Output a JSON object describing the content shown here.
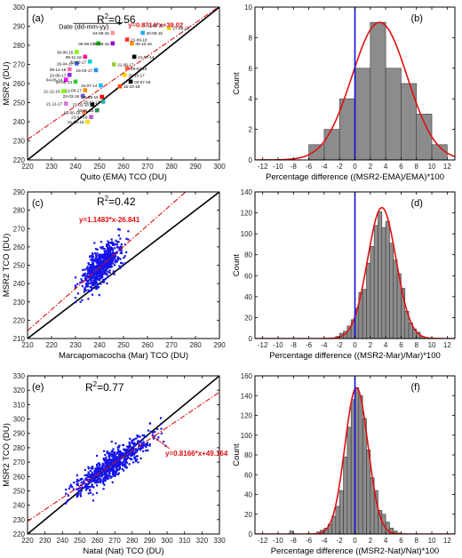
{
  "chart_data": [
    {
      "panel_label": "(a)",
      "type": "scatter",
      "xlabel": "Quito (EMA) TCO (DU)",
      "ylabel": "MSR2 (DU)",
      "xlim": [
        220,
        300
      ],
      "ylim": [
        220,
        300
      ],
      "xticks": [
        220,
        230,
        240,
        250,
        260,
        270,
        280,
        290,
        300
      ],
      "yticks": [
        220,
        230,
        240,
        250,
        260,
        270,
        280,
        290,
        300
      ],
      "r2_prefix": "R",
      "r2_sup": "2",
      "r2_value": "=0.56",
      "fit_equation": "y=0.8714*x+39.02",
      "fit": {
        "slope": 0.8714,
        "intercept": 39.02
      },
      "legend_title": "Date (dd-mm-yy)",
      "points": [
        {
          "date": "11-09-15",
          "x": 268.5,
          "y": 290.5,
          "color": "#d9d9d9"
        },
        {
          "date": "27-09-15",
          "x": 279.0,
          "y": 289.0,
          "color": "#e6d200"
        },
        {
          "date": "04-09-15",
          "x": 255.5,
          "y": 286.5,
          "color": "#ff9999"
        },
        {
          "date": "20-09-15",
          "x": 268.0,
          "y": 286.5,
          "color": "#22aaff"
        },
        {
          "date": "21-09-18",
          "x": 261.5,
          "y": 283.0,
          "color": "#ff3030"
        },
        {
          "date": "06-09-17",
          "x": 249.5,
          "y": 281.0,
          "color": "#00c000"
        },
        {
          "date": "08-09-16",
          "x": 255.5,
          "y": 281.0,
          "color": "#9400d3"
        },
        {
          "date": "06-10-16",
          "x": 263.5,
          "y": 281.0,
          "color": "#ff8c00"
        },
        {
          "date": "30-06-15",
          "x": 240.5,
          "y": 276.5,
          "color": "#7fff00"
        },
        {
          "date": "09-11-16",
          "x": 244.0,
          "y": 274.0,
          "color": "#ff1493"
        },
        {
          "date": "21-07-14",
          "x": 264.5,
          "y": 274.0,
          "color": "#000000"
        },
        {
          "date": "22-02-17",
          "x": 246.0,
          "y": 271.5,
          "color": "#00ced1"
        },
        {
          "date": "26-04-17",
          "x": 240.5,
          "y": 270.5,
          "color": "#4169e1"
        },
        {
          "date": "21-06-17",
          "x": 256.0,
          "y": 270.0,
          "color": "#9acd32"
        },
        {
          "date": "29-03-18",
          "x": 261.5,
          "y": 268.0,
          "color": "#ff6347"
        },
        {
          "date": "08-12-16",
          "x": 237.5,
          "y": 267.5,
          "color": "#ff69b4"
        },
        {
          "date": "15-03-17",
          "x": 248.5,
          "y": 267.0,
          "color": "#1e90ff"
        },
        {
          "date": "23-06-17",
          "x": 237.5,
          "y": 264.5,
          "color": "#8a2be2"
        },
        {
          "date": "20-10-17",
          "x": 260.5,
          "y": 264.5,
          "color": "#ffd700"
        },
        {
          "date": "04-06-14",
          "x": 236.0,
          "y": 262.0,
          "color": "#ff00ff"
        },
        {
          "date": "03-07-18",
          "x": 263.0,
          "y": 261.0,
          "color": "#000000"
        },
        {
          "date": "20-08-14",
          "x": 240.0,
          "y": 261.0,
          "color": "#32cd32"
        },
        {
          "date": "15-07-14",
          "x": 250.5,
          "y": 259.0,
          "color": "#00bfff"
        },
        {
          "date": "15-10-18",
          "x": 258.5,
          "y": 258.5,
          "color": "#ff4500"
        },
        {
          "date": "21-12-16",
          "x": 235.0,
          "y": 256.0,
          "color": "#7cfc00"
        },
        {
          "date": "12-06-17",
          "x": 244.0,
          "y": 256.5,
          "color": "#ff8c00"
        },
        {
          "date": "22-03-18",
          "x": 243.0,
          "y": 253.5,
          "color": "#6a5acd"
        },
        {
          "date": "26-05-15",
          "x": 251.0,
          "y": 253.0,
          "color": "#ff0000"
        },
        {
          "date": "18-12-17",
          "x": 251.5,
          "y": 250.5,
          "color": "#20b2aa"
        },
        {
          "date": "21-11-17",
          "x": 236.0,
          "y": 249.5,
          "color": "#da70d6"
        },
        {
          "date": "27-02-18",
          "x": 247.0,
          "y": 249.0,
          "color": "#000000"
        },
        {
          "date": "20-01-18",
          "x": 249.0,
          "y": 246.0,
          "color": "#2e8b57"
        },
        {
          "date": "02-06-18",
          "x": 243.5,
          "y": 245.0,
          "color": "#ff7f50"
        },
        {
          "date": "23-04-18",
          "x": 246.5,
          "y": 242.5,
          "color": "#ba55d3"
        },
        {
          "date": "21-05-18",
          "x": 245.0,
          "y": 240.0,
          "color": "#ffd700"
        }
      ]
    },
    {
      "panel_label": "(b)",
      "type": "bar",
      "xlabel": "Percentage difference ((MSR2-EMA)/EMA)*100",
      "ylabel": "Count",
      "xlim": [
        -13,
        13
      ],
      "ylim": [
        0,
        10
      ],
      "xticks": [
        -12,
        -10,
        -8,
        -6,
        -4,
        -2,
        0,
        2,
        4,
        6,
        8,
        10,
        12
      ],
      "yticks": [
        0,
        2,
        4,
        6,
        8,
        10
      ],
      "bin_width": 2,
      "bin_starts": [
        -6,
        -4,
        -2,
        0,
        2,
        4,
        6,
        8,
        10
      ],
      "counts": [
        1,
        2,
        4,
        6,
        9,
        6,
        5,
        3,
        1
      ],
      "normal_fit": {
        "mean": 3.2,
        "sd": 3.6,
        "peak": 9.0
      },
      "zero_line": 0
    },
    {
      "panel_label": "(c)",
      "type": "scatter",
      "xlabel": "Marcapomacocha (Mar) TCO (DU)",
      "ylabel": "MSR2 TCO (DU)",
      "xlim": [
        210,
        290
      ],
      "ylim": [
        210,
        290
      ],
      "xticks": [
        210,
        220,
        230,
        240,
        250,
        260,
        270,
        280,
        290
      ],
      "yticks": [
        210,
        220,
        230,
        240,
        250,
        260,
        270,
        280,
        290
      ],
      "r2_prefix": "R",
      "r2_sup": "2",
      "r2_value": "=0.42",
      "fit_equation": "y=1.1483*x-26.841",
      "fit": {
        "slope": 1.1483,
        "intercept": -26.841
      },
      "cloud": {
        "x_center": 241,
        "x_sd": 4.2,
        "x_range": [
          230,
          252
        ],
        "slope": 1.1483,
        "intercept": -26.841,
        "resid_sd": 4.8,
        "n": 650
      }
    },
    {
      "panel_label": "(d)",
      "type": "bar",
      "xlabel": "Percentage difference ((MSR2-Mar)/Mar)*100",
      "ylabel": "Count",
      "xlim": [
        -13,
        13
      ],
      "ylim": [
        0,
        140
      ],
      "xticks": [
        -12,
        -10,
        -8,
        -6,
        -4,
        -2,
        0,
        2,
        4,
        6,
        8,
        10,
        12
      ],
      "yticks": [
        0,
        20,
        40,
        60,
        80,
        100,
        120,
        140
      ],
      "bin_width": 0.5,
      "bin_starts": [
        -2.5,
        -2.0,
        -1.5,
        -1.0,
        -0.5,
        0.0,
        0.5,
        1.0,
        1.5,
        2.0,
        2.5,
        3.0,
        3.5,
        4.0,
        4.5,
        5.0,
        5.5,
        6.0,
        6.5,
        7.0,
        7.5,
        8.0,
        8.5,
        9.0
      ],
      "counts": [
        2,
        5,
        7,
        12,
        18,
        29,
        44,
        47,
        72,
        88,
        108,
        121,
        106,
        112,
        91,
        75,
        62,
        48,
        26,
        15,
        9,
        6,
        2,
        1
      ],
      "normal_fit": {
        "mean": 3.5,
        "sd": 1.85,
        "peak": 125
      },
      "zero_line": 0
    },
    {
      "panel_label": "(e)",
      "type": "scatter",
      "xlabel": "Natal (Nat) TCO (DU)",
      "ylabel": "MSR2 TCO (DU)",
      "xlim": [
        220,
        330
      ],
      "ylim": [
        220,
        330
      ],
      "xticks": [
        220,
        230,
        240,
        250,
        260,
        270,
        280,
        290,
        300,
        310,
        320,
        330
      ],
      "yticks": [
        220,
        230,
        240,
        250,
        260,
        270,
        280,
        290,
        300,
        310,
        320,
        330
      ],
      "r2_prefix": "R",
      "r2_sup": "2",
      "r2_value": "=0.77",
      "fit_equation": "y=0.8166*x+49.164",
      "fit": {
        "slope": 0.8166,
        "intercept": 49.164
      },
      "cloud": {
        "x_center": 268,
        "x_sd": 10.5,
        "x_range": [
          242,
          300
        ],
        "slope": 0.8166,
        "intercept": 49.164,
        "resid_sd": 4.5,
        "n": 700
      }
    },
    {
      "panel_label": "(f)",
      "type": "bar",
      "xlabel": "Percentage difference ((MSR2-Nat)/Nat)*100",
      "ylabel": "Count",
      "xlim": [
        -13,
        13
      ],
      "ylim": [
        0,
        160
      ],
      "xticks": [
        -12,
        -10,
        -8,
        -6,
        -4,
        -2,
        0,
        2,
        4,
        6,
        8,
        10,
        12
      ],
      "yticks": [
        0,
        20,
        40,
        60,
        80,
        100,
        120,
        140,
        160
      ],
      "bin_width": 0.5,
      "bin_starts": [
        -8.5,
        -8.0,
        -7.5,
        -7.0,
        -6.5,
        -6.0,
        -5.5,
        -5.0,
        -4.5,
        -4.0,
        -3.5,
        -3.0,
        -2.5,
        -2.0,
        -1.5,
        -1.0,
        -0.5,
        0.0,
        0.5,
        1.0,
        1.5,
        2.0,
        2.5,
        3.0,
        3.5,
        4.0,
        4.5,
        5.0,
        5.5
      ],
      "counts": [
        3,
        0,
        0,
        0,
        0,
        0,
        0,
        2,
        4,
        6,
        10,
        18,
        28,
        44,
        78,
        108,
        136,
        148,
        140,
        117,
        85,
        57,
        44,
        24,
        20,
        12,
        6,
        3,
        1
      ],
      "normal_fit": {
        "mean": 0.2,
        "sd": 1.5,
        "peak": 148
      },
      "zero_line": 0
    }
  ]
}
